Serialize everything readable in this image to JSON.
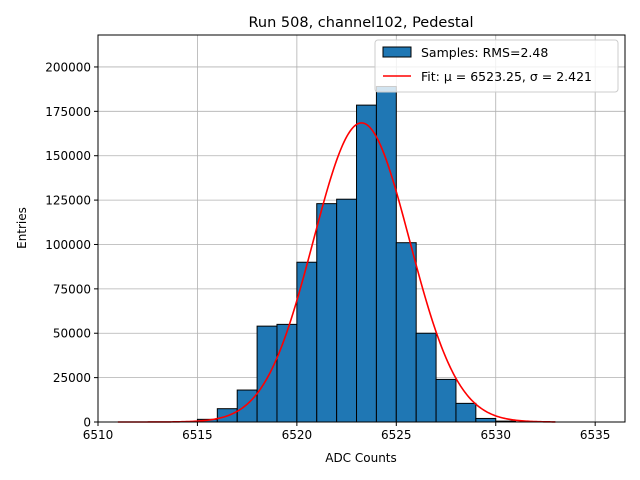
{
  "chart_data": {
    "type": "bar",
    "title": "Run 508, channel102, Pedestal",
    "xlabel": "ADC Counts",
    "ylabel": "Entries",
    "xlim": [
      6510,
      6536.5
    ],
    "ylim": [
      0,
      218000
    ],
    "xticks": [
      6510,
      6515,
      6520,
      6525,
      6530,
      6535
    ],
    "yticks": [
      0,
      25000,
      50000,
      75000,
      100000,
      125000,
      150000,
      175000,
      200000
    ],
    "grid": true,
    "legend_position": "top-right",
    "histogram": {
      "name": "Samples: RMS=2.48",
      "color": "#1f77b4",
      "bin_width": 1,
      "bins": [
        {
          "x0": 6515,
          "value": 1500
        },
        {
          "x0": 6516,
          "value": 7500
        },
        {
          "x0": 6517,
          "value": 18000
        },
        {
          "x0": 6518,
          "value": 54000
        },
        {
          "x0": 6519,
          "value": 55000
        },
        {
          "x0": 6520,
          "value": 90000
        },
        {
          "x0": 6521,
          "value": 123000
        },
        {
          "x0": 6522,
          "value": 125500
        },
        {
          "x0": 6523,
          "value": 178500
        },
        {
          "x0": 6524,
          "value": 189000
        },
        {
          "x0": 6525,
          "value": 101000
        },
        {
          "x0": 6526,
          "value": 50000
        },
        {
          "x0": 6527,
          "value": 24000
        },
        {
          "x0": 6528,
          "value": 10500
        },
        {
          "x0": 6529,
          "value": 2000
        },
        {
          "x0": 6530,
          "value": 500
        }
      ]
    },
    "fit": {
      "name": "Fit: μ = 6523.25, σ = 2.421",
      "color": "#ff0000",
      "mu": 6523.25,
      "sigma": 2.421,
      "amplitude": 168500,
      "x_range": [
        6511,
        6533
      ]
    }
  }
}
